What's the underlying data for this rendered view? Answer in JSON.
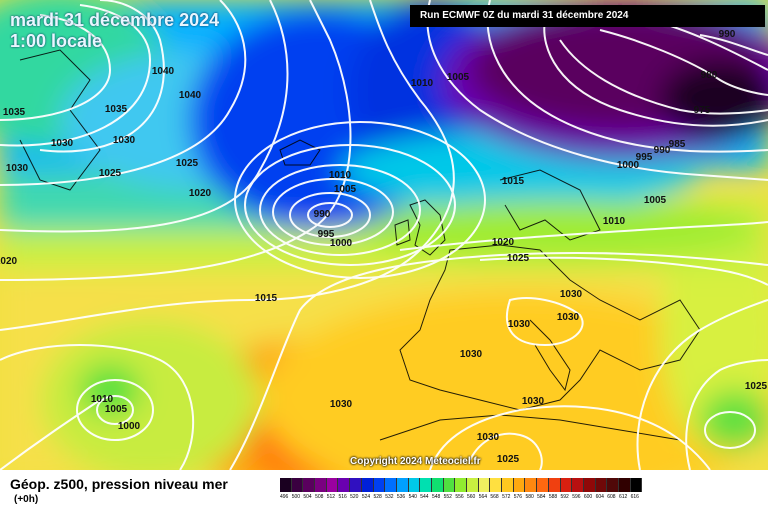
{
  "header": {
    "date_line": "mardi 31 décembre 2024",
    "time_line": "1:00 locale",
    "run_info": "Run ECMWF 0Z du mardi 31 décembre 2024"
  },
  "copyright": "Copyright 2024 Meteociel.fr",
  "legend": {
    "title": "Géop. z500, pression niveau mer",
    "subtitle": "(+0h)",
    "scale": [
      {
        "value": "496",
        "color": "#1a0020"
      },
      {
        "value": "500",
        "color": "#3a0040"
      },
      {
        "value": "504",
        "color": "#5a005e"
      },
      {
        "value": "508",
        "color": "#7a0080"
      },
      {
        "value": "512",
        "color": "#9a00a0"
      },
      {
        "value": "516",
        "color": "#6a00b0"
      },
      {
        "value": "520",
        "color": "#3010c0"
      },
      {
        "value": "524",
        "color": "#0020d8"
      },
      {
        "value": "528",
        "color": "#0040f0"
      },
      {
        "value": "532",
        "color": "#0070ff"
      },
      {
        "value": "536",
        "color": "#00a0ff"
      },
      {
        "value": "540",
        "color": "#00c8e8"
      },
      {
        "value": "544",
        "color": "#00e0b0"
      },
      {
        "value": "548",
        "color": "#10e070"
      },
      {
        "value": "552",
        "color": "#50e040"
      },
      {
        "value": "556",
        "color": "#90ec30"
      },
      {
        "value": "560",
        "color": "#c8f040"
      },
      {
        "value": "564",
        "color": "#f0f060"
      },
      {
        "value": "568",
        "color": "#ffe040"
      },
      {
        "value": "572",
        "color": "#ffc820"
      },
      {
        "value": "576",
        "color": "#ffa810"
      },
      {
        "value": "580",
        "color": "#ff8810"
      },
      {
        "value": "584",
        "color": "#ff6810"
      },
      {
        "value": "588",
        "color": "#f04010"
      },
      {
        "value": "592",
        "color": "#d82010"
      },
      {
        "value": "596",
        "color": "#b81010"
      },
      {
        "value": "600",
        "color": "#900808"
      },
      {
        "value": "604",
        "color": "#700808"
      },
      {
        "value": "608",
        "color": "#500808"
      },
      {
        "value": "612",
        "color": "#300000"
      },
      {
        "value": "616",
        "color": "#000000"
      }
    ]
  },
  "isobar_labels": [
    "1040",
    "1040",
    "1035",
    "1035",
    "1030",
    "1030",
    "1030",
    "1025",
    "1025",
    "1020",
    "1020",
    "1015",
    "1010",
    "1005",
    "990",
    "995",
    "1000",
    "1010",
    "1005",
    "990",
    "995",
    "985",
    "1000",
    "1005",
    "1010",
    "1015",
    "1020",
    "1025",
    "1030",
    "1030",
    "1030",
    "1030",
    "1030",
    "1030",
    "1025",
    "1010",
    "1005",
    "1000",
    "1025",
    "1030",
    "980",
    "975",
    "990",
    "1000"
  ]
}
